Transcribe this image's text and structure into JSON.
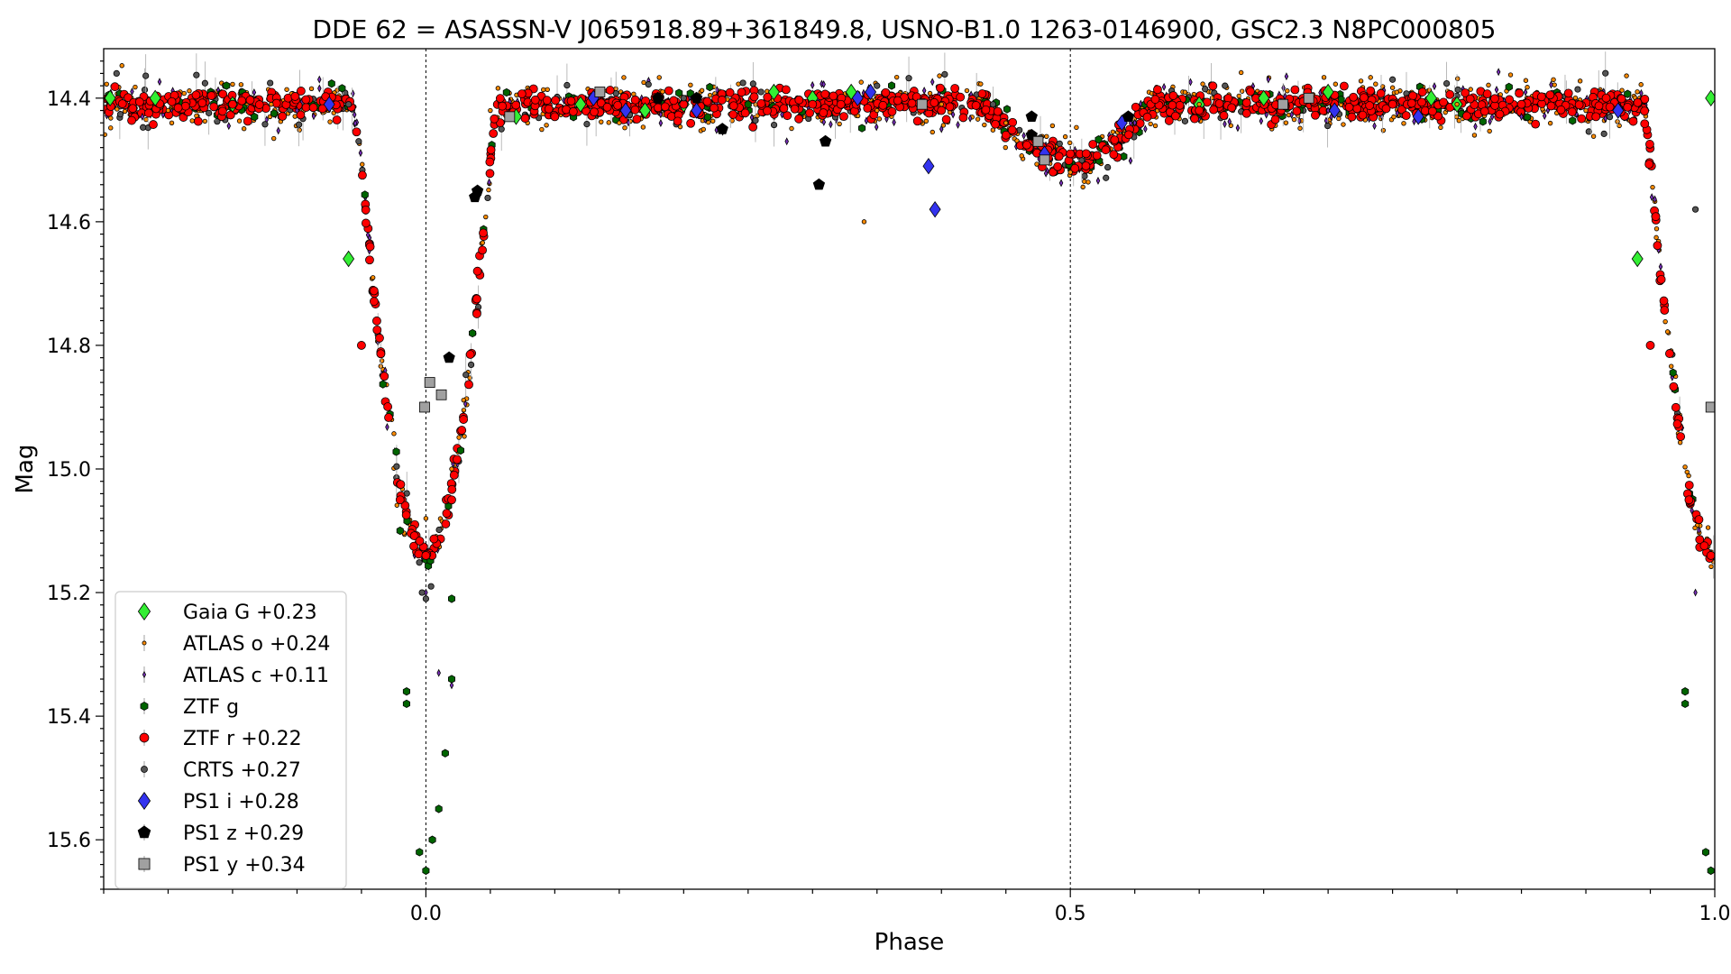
{
  "chart_data": {
    "type": "scatter",
    "title": "DDE 62 = ASASSN-V J065918.89+361849.8, USNO-B1.0 1263-0146900, GSC2.3 N8PC000805",
    "xlabel": "Phase",
    "ylabel": "Mag",
    "xlim": [
      -0.25,
      1.0
    ],
    "ylim": [
      15.68,
      14.32
    ],
    "y_inverted": true,
    "x_ticks": [
      0.0,
      0.5,
      1.0
    ],
    "x_tick_labels": [
      "0.0",
      "0.5",
      "1.0"
    ],
    "y_ticks": [
      14.4,
      14.6,
      14.8,
      15.0,
      15.2,
      15.4,
      15.6
    ],
    "y_tick_labels": [
      "14.4",
      "14.6",
      "14.8",
      "15.0",
      "15.2",
      "15.4",
      "15.6"
    ],
    "reference_lines_x": [
      0.0,
      0.5
    ],
    "legend_position": "lower-left",
    "light_curve_model": {
      "out_of_eclipse_mag": 14.41,
      "primary_min_phase": 0.0,
      "primary_min_mag": 15.14,
      "primary_half_width_phase": 0.055,
      "secondary_min_phase": 0.5,
      "secondary_min_mag": 14.5,
      "secondary_half_width_phase": 0.065
    },
    "series": [
      {
        "name": "Gaia G +0.23",
        "marker": "diamond",
        "color": "#33ee33",
        "points": [
          [
            -0.245,
            14.4
          ],
          [
            -0.21,
            14.4
          ],
          [
            -0.15,
            14.41
          ],
          [
            -0.06,
            14.66
          ],
          [
            0.07,
            14.43
          ],
          [
            0.12,
            14.41
          ],
          [
            0.17,
            14.42
          ],
          [
            0.2,
            14.41
          ],
          [
            0.27,
            14.39
          ],
          [
            0.3,
            14.4
          ],
          [
            0.33,
            14.39
          ],
          [
            0.6,
            14.41
          ],
          [
            0.65,
            14.4
          ],
          [
            0.7,
            14.39
          ],
          [
            0.78,
            14.4
          ],
          [
            0.8,
            14.41
          ],
          [
            0.94,
            14.66
          ],
          [
            0.997,
            14.4
          ]
        ]
      },
      {
        "name": "ATLAS o +0.24",
        "marker": "dot",
        "color": "#ff8c00",
        "points": [
          [
            -0.2,
            14.42
          ],
          [
            -0.12,
            14.41
          ],
          [
            0.05,
            14.42
          ],
          [
            0.15,
            14.44
          ],
          [
            0.25,
            14.41
          ],
          [
            0.35,
            14.42
          ],
          [
            0.4,
            14.41
          ],
          [
            0.45,
            14.44
          ],
          [
            0.5,
            14.52
          ],
          [
            0.55,
            14.44
          ],
          [
            0.6,
            14.41
          ],
          [
            0.7,
            14.42
          ],
          [
            0.8,
            14.41
          ],
          [
            0.9,
            14.42
          ],
          [
            0.0,
            15.08
          ],
          [
            0.02,
            15.0
          ],
          [
            0.34,
            14.6
          ],
          [
            0.98,
            15.05
          ]
        ]
      },
      {
        "name": "ATLAS c +0.11",
        "marker": "thin-diamond",
        "color": "#7b2fbe",
        "points": [
          [
            -0.22,
            14.43
          ],
          [
            -0.1,
            14.42
          ],
          [
            0.0,
            15.2
          ],
          [
            0.01,
            15.33
          ],
          [
            0.02,
            15.35
          ],
          [
            0.1,
            14.43
          ],
          [
            0.28,
            14.47
          ],
          [
            0.4,
            14.45
          ],
          [
            0.55,
            14.44
          ],
          [
            0.7,
            14.42
          ],
          [
            0.85,
            14.43
          ],
          [
            0.985,
            15.2
          ]
        ]
      },
      {
        "name": "ZTF g",
        "marker": "hexagon",
        "color": "#006400",
        "points": [
          [
            -0.02,
            15.1
          ],
          [
            -0.015,
            15.36
          ],
          [
            -0.015,
            15.38
          ],
          [
            -0.005,
            15.62
          ],
          [
            0.0,
            15.65
          ],
          [
            0.005,
            15.6
          ],
          [
            0.01,
            15.55
          ],
          [
            0.015,
            15.46
          ],
          [
            0.02,
            15.34
          ],
          [
            0.02,
            15.21
          ],
          [
            0.027,
            14.97
          ],
          [
            0.1,
            14.43
          ],
          [
            0.25,
            14.41
          ],
          [
            0.6,
            14.42
          ],
          [
            0.977,
            15.36
          ],
          [
            0.977,
            15.38
          ],
          [
            0.993,
            15.62
          ],
          [
            0.997,
            15.65
          ]
        ]
      },
      {
        "name": "ZTF r +0.22",
        "marker": "circle",
        "color": "#ff0000",
        "points": [
          [
            -0.15,
            14.41
          ],
          [
            -0.05,
            14.8
          ],
          [
            -0.02,
            15.05
          ],
          [
            0.0,
            15.14
          ],
          [
            0.02,
            15.05
          ],
          [
            0.04,
            14.68
          ],
          [
            0.1,
            14.43
          ],
          [
            0.2,
            14.41
          ],
          [
            0.3,
            14.41
          ],
          [
            0.4,
            14.42
          ],
          [
            0.5,
            14.49
          ],
          [
            0.6,
            14.42
          ],
          [
            0.75,
            14.41
          ],
          [
            0.85,
            14.41
          ],
          [
            0.95,
            14.8
          ],
          [
            0.98,
            15.05
          ],
          [
            0.997,
            15.14
          ]
        ]
      },
      {
        "name": "CRTS +0.27",
        "marker": "small-circle",
        "color": "#555555",
        "points": [
          [
            -0.24,
            14.36
          ],
          [
            -0.06,
            14.41
          ],
          [
            -0.003,
            15.2
          ],
          [
            0.0,
            15.21
          ],
          [
            0.004,
            15.19
          ],
          [
            0.2,
            14.4
          ],
          [
            0.26,
            14.39
          ],
          [
            0.35,
            14.38
          ],
          [
            0.44,
            14.41
          ],
          [
            0.62,
            14.38
          ],
          [
            0.75,
            14.37
          ],
          [
            0.985,
            14.58
          ]
        ]
      },
      {
        "name": "PS1 i +0.28",
        "marker": "diamond",
        "color": "#3333ee",
        "points": [
          [
            -0.075,
            14.41
          ],
          [
            0.13,
            14.4
          ],
          [
            0.155,
            14.42
          ],
          [
            0.21,
            14.42
          ],
          [
            0.335,
            14.4
          ],
          [
            0.345,
            14.39
          ],
          [
            0.39,
            14.51
          ],
          [
            0.395,
            14.58
          ],
          [
            0.48,
            14.49
          ],
          [
            0.54,
            14.44
          ],
          [
            0.705,
            14.42
          ],
          [
            0.77,
            14.43
          ],
          [
            0.925,
            14.42
          ]
        ]
      },
      {
        "name": "PS1 z +0.29",
        "marker": "pentagon",
        "color": "#000000",
        "points": [
          [
            0.038,
            14.56
          ],
          [
            0.04,
            14.55
          ],
          [
            0.018,
            14.82
          ],
          [
            0.18,
            14.4
          ],
          [
            0.21,
            14.4
          ],
          [
            0.23,
            14.45
          ],
          [
            0.305,
            14.54
          ],
          [
            0.31,
            14.47
          ],
          [
            0.47,
            14.43
          ],
          [
            0.47,
            14.46
          ],
          [
            0.545,
            14.43
          ]
        ]
      },
      {
        "name": "PS1 y +0.34",
        "marker": "square",
        "color": "#a0a0a0",
        "points": [
          [
            -0.001,
            14.9
          ],
          [
            0.003,
            14.86
          ],
          [
            0.012,
            14.88
          ],
          [
            0.065,
            14.43
          ],
          [
            0.135,
            14.39
          ],
          [
            0.385,
            14.41
          ],
          [
            0.475,
            14.47
          ],
          [
            0.48,
            14.5
          ],
          [
            0.665,
            14.41
          ],
          [
            0.685,
            14.4
          ],
          [
            0.997,
            14.9
          ]
        ]
      }
    ]
  }
}
